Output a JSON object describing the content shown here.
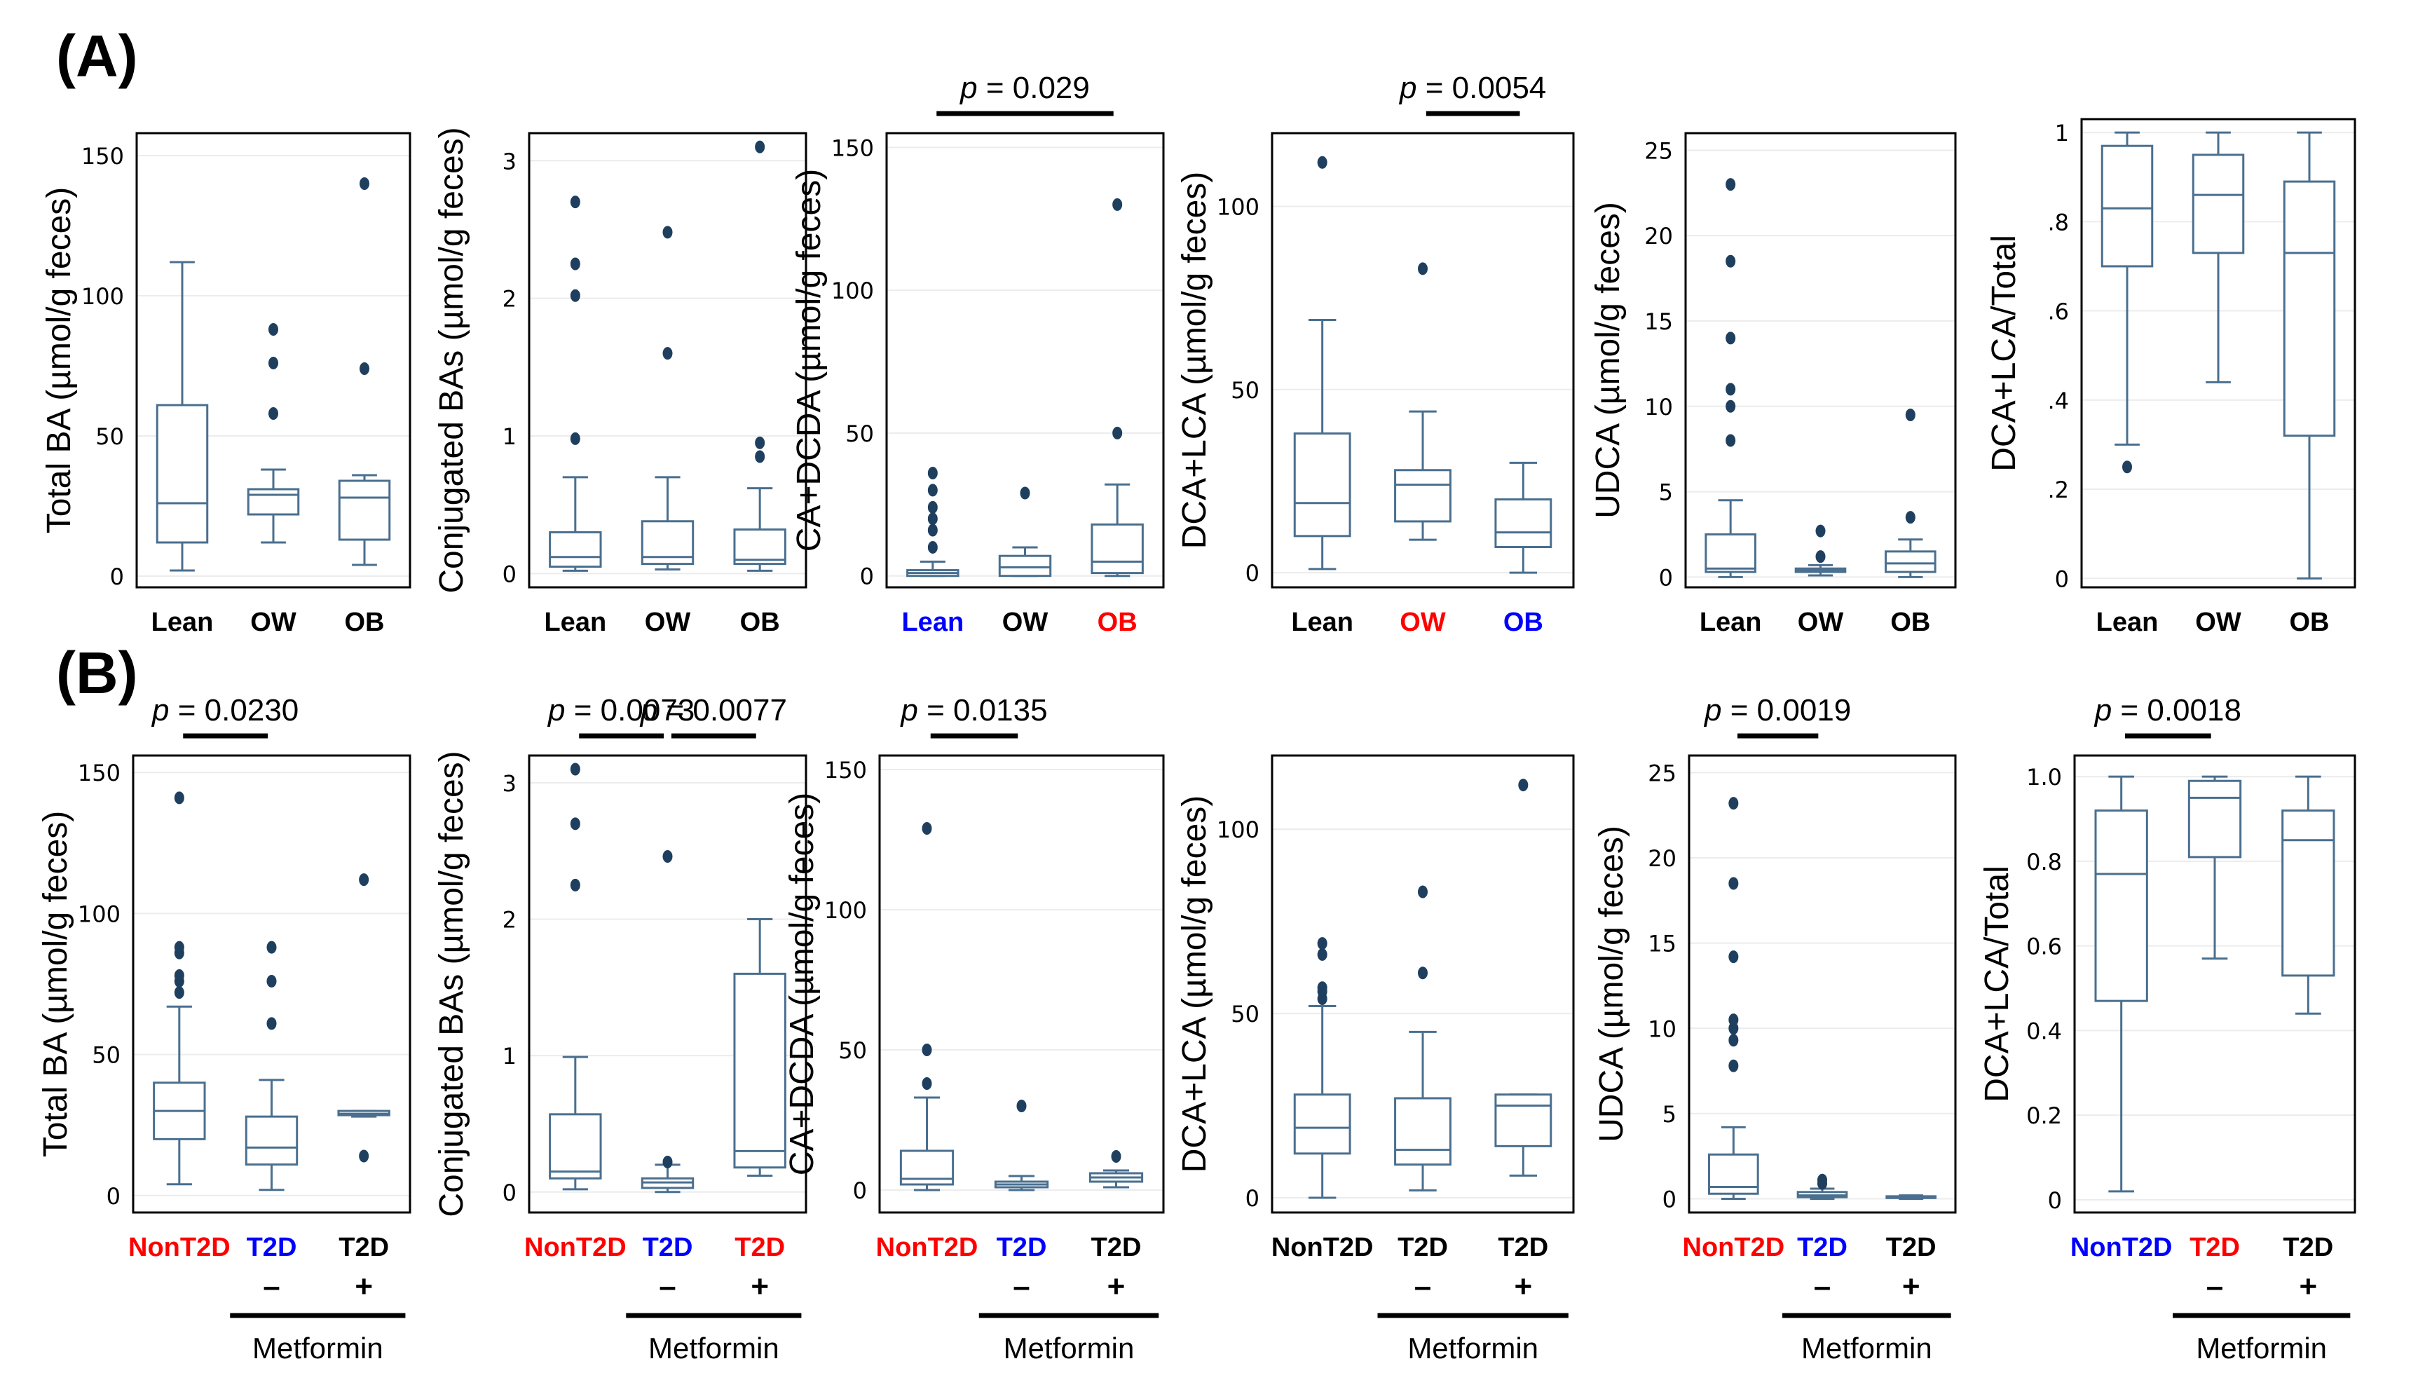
{
  "figure": {
    "panel_a_label": "(A)",
    "panel_b_label": "(B)",
    "colors": {
      "box": "#4a6f8f",
      "outlier": "#1f3f5f",
      "red": "#ff0000",
      "blue": "#0000ff",
      "black": "#000000"
    }
  },
  "chart_data": [
    {
      "id": "A1",
      "panel": "A",
      "type": "box",
      "ylabel": "Total BA (µmol/g feces)",
      "ylim": [
        -4,
        158
      ],
      "yticks": [
        0,
        50,
        100,
        150
      ],
      "ytick_labels": [
        "0",
        "50",
        "100",
        "150"
      ],
      "categories": [
        {
          "label": "Lean",
          "color": "#000000"
        },
        {
          "label": "OW",
          "color": "#000000"
        },
        {
          "label": "OB",
          "color": "#000000"
        }
      ],
      "boxes": [
        {
          "min": 2,
          "q1": 12,
          "median": 26,
          "q3": 61,
          "max": 112,
          "outliers": []
        },
        {
          "min": 12,
          "q1": 22,
          "median": 29,
          "q3": 31,
          "max": 38,
          "outliers": [
            58,
            76,
            88
          ]
        },
        {
          "min": 4,
          "q1": 13,
          "median": 28,
          "q3": 34,
          "max": 36,
          "outliers": [
            74,
            140
          ]
        }
      ],
      "brackets": [],
      "metformin": false
    },
    {
      "id": "A2",
      "panel": "A",
      "type": "box",
      "ylabel": "Conjugated BAs (µmol/g feces)",
      "ylim": [
        -0.1,
        3.2
      ],
      "yticks": [
        0,
        1,
        2,
        3
      ],
      "ytick_labels": [
        "0",
        "1",
        "2",
        "3"
      ],
      "categories": [
        {
          "label": "Lean",
          "color": "#000000"
        },
        {
          "label": "OW",
          "color": "#000000"
        },
        {
          "label": "OB",
          "color": "#000000"
        }
      ],
      "boxes": [
        {
          "min": 0.02,
          "q1": 0.05,
          "median": 0.12,
          "q3": 0.3,
          "max": 0.7,
          "outliers": [
            0.98,
            2.02,
            2.25,
            2.7
          ]
        },
        {
          "min": 0.03,
          "q1": 0.07,
          "median": 0.12,
          "q3": 0.38,
          "max": 0.7,
          "outliers": [
            1.6,
            2.48
          ]
        },
        {
          "min": 0.02,
          "q1": 0.07,
          "median": 0.1,
          "q3": 0.32,
          "max": 0.62,
          "outliers": [
            0.85,
            0.95,
            3.1
          ]
        }
      ],
      "brackets": [],
      "metformin": false
    },
    {
      "id": "A3",
      "panel": "A",
      "type": "box",
      "ylabel": "CA+DCDA (µmol/g feces)",
      "ylim": [
        -4,
        155
      ],
      "yticks": [
        0,
        50,
        100,
        150
      ],
      "ytick_labels": [
        "0",
        "50",
        "100",
        "150"
      ],
      "categories": [
        {
          "label": "Lean",
          "color": "#0000ff"
        },
        {
          "label": "OW",
          "color": "#000000"
        },
        {
          "label": "OB",
          "color": "#ff0000"
        }
      ],
      "boxes": [
        {
          "min": 0,
          "q1": 0,
          "median": 1,
          "q3": 2,
          "max": 5,
          "outliers": [
            10,
            16,
            20,
            24,
            30,
            36
          ]
        },
        {
          "min": 0,
          "q1": 0,
          "median": 3,
          "q3": 7,
          "max": 10,
          "outliers": [
            29
          ]
        },
        {
          "min": 0,
          "q1": 1,
          "median": 5,
          "q3": 18,
          "max": 32,
          "outliers": [
            50,
            130
          ]
        }
      ],
      "brackets": [
        {
          "from": 0,
          "to": 2,
          "label": "p = 0.029"
        }
      ],
      "metformin": false
    },
    {
      "id": "A4",
      "panel": "A",
      "type": "box",
      "ylabel": "DCA+LCA (µmol/g feces)",
      "ylim": [
        -4,
        120
      ],
      "yticks": [
        0,
        50,
        100
      ],
      "ytick_labels": [
        "0",
        "50",
        "100"
      ],
      "categories": [
        {
          "label": "Lean",
          "color": "#000000"
        },
        {
          "label": "OW",
          "color": "#ff0000"
        },
        {
          "label": "OB",
          "color": "#0000ff"
        }
      ],
      "boxes": [
        {
          "min": 1,
          "q1": 10,
          "median": 19,
          "q3": 38,
          "max": 69,
          "outliers": [
            112
          ]
        },
        {
          "min": 9,
          "q1": 14,
          "median": 24,
          "q3": 28,
          "max": 44,
          "outliers": [
            83
          ]
        },
        {
          "min": 0,
          "q1": 7,
          "median": 11,
          "q3": 20,
          "max": 30,
          "outliers": []
        }
      ],
      "brackets": [
        {
          "from": 1,
          "to": 2,
          "label": "p = 0.0054"
        }
      ],
      "metformin": false
    },
    {
      "id": "A5",
      "panel": "A",
      "type": "box",
      "ylabel": "UDCA (µmol/g feces)",
      "ylim": [
        -0.6,
        26
      ],
      "yticks": [
        0,
        5,
        10,
        15,
        20,
        25
      ],
      "ytick_labels": [
        "0",
        "5",
        "10",
        "15",
        "20",
        "25"
      ],
      "categories": [
        {
          "label": "Lean",
          "color": "#000000"
        },
        {
          "label": "OW",
          "color": "#000000"
        },
        {
          "label": "OB",
          "color": "#000000"
        }
      ],
      "boxes": [
        {
          "min": 0,
          "q1": 0.3,
          "median": 0.5,
          "q3": 2.5,
          "max": 4.5,
          "outliers": [
            8,
            10,
            11,
            14,
            18.5,
            23
          ]
        },
        {
          "min": 0.1,
          "q1": 0.3,
          "median": 0.4,
          "q3": 0.5,
          "max": 0.7,
          "outliers": [
            1.2,
            2.7
          ]
        },
        {
          "min": 0,
          "q1": 0.3,
          "median": 0.8,
          "q3": 1.5,
          "max": 2.2,
          "outliers": [
            3.5,
            9.5
          ]
        }
      ],
      "brackets": [],
      "metformin": false
    },
    {
      "id": "A6",
      "panel": "A",
      "type": "box",
      "ylabel": "DCA+LCA/Total",
      "ylim": [
        -0.02,
        1.03
      ],
      "yticks": [
        0,
        0.2,
        0.4,
        0.6,
        0.8,
        1.0
      ],
      "ytick_labels": [
        "0",
        ".2",
        ".4",
        ".6",
        ".8",
        "1"
      ],
      "categories": [
        {
          "label": "Lean",
          "color": "#000000"
        },
        {
          "label": "OW",
          "color": "#000000"
        },
        {
          "label": "OB",
          "color": "#000000"
        }
      ],
      "boxes": [
        {
          "min": 0.3,
          "q1": 0.7,
          "median": 0.83,
          "q3": 0.97,
          "max": 1.0,
          "outliers": [
            0.25
          ]
        },
        {
          "min": 0.44,
          "q1": 0.73,
          "median": 0.86,
          "q3": 0.95,
          "max": 1.0,
          "outliers": []
        },
        {
          "min": 0,
          "q1": 0.32,
          "median": 0.73,
          "q3": 0.89,
          "max": 1.0,
          "outliers": []
        }
      ],
      "brackets": [],
      "metformin": false
    },
    {
      "id": "B1",
      "panel": "B",
      "type": "box",
      "ylabel": "Total BA (µmol/g feces)",
      "ylim": [
        -6,
        156
      ],
      "yticks": [
        0,
        50,
        100,
        150
      ],
      "ytick_labels": [
        "0",
        "50",
        "100",
        "150"
      ],
      "categories": [
        {
          "label": "NonT2D",
          "color": "#ff0000"
        },
        {
          "label": "T2D",
          "color": "#0000ff",
          "sign": "–"
        },
        {
          "label": "T2D",
          "color": "#000000",
          "sign": "+"
        }
      ],
      "boxes": [
        {
          "min": 4,
          "q1": 20,
          "median": 30,
          "q3": 40,
          "max": 67,
          "outliers": [
            72,
            76,
            78,
            86,
            88,
            141
          ]
        },
        {
          "min": 2,
          "q1": 11,
          "median": 17,
          "q3": 28,
          "max": 41,
          "outliers": [
            61,
            76,
            88
          ]
        },
        {
          "min": 28,
          "q1": 28.5,
          "median": 29,
          "q3": 30,
          "max": 30,
          "outliers": [
            14,
            112
          ]
        }
      ],
      "brackets": [
        {
          "from": 0,
          "to": 1,
          "label": "p = 0.0230"
        }
      ],
      "metformin": true,
      "metformin_label": "Metformin"
    },
    {
      "id": "B2",
      "panel": "B",
      "type": "box",
      "ylabel": "Conjugated BAs (µmol/g feces)",
      "ylim": [
        -0.15,
        3.2
      ],
      "yticks": [
        0,
        1,
        2,
        3
      ],
      "ytick_labels": [
        "0",
        "1",
        "2",
        "3"
      ],
      "categories": [
        {
          "label": "NonT2D",
          "color": "#ff0000"
        },
        {
          "label": "T2D",
          "color": "#0000ff",
          "sign": "–"
        },
        {
          "label": "T2D",
          "color": "#ff0000",
          "sign": "+"
        }
      ],
      "boxes": [
        {
          "min": 0.02,
          "q1": 0.1,
          "median": 0.15,
          "q3": 0.57,
          "max": 0.99,
          "outliers": [
            2.25,
            2.7,
            3.1
          ]
        },
        {
          "min": 0,
          "q1": 0.03,
          "median": 0.07,
          "q3": 0.1,
          "max": 0.2,
          "outliers": [
            0.22,
            2.46
          ]
        },
        {
          "min": 0.12,
          "q1": 0.18,
          "median": 0.3,
          "q3": 1.6,
          "max": 2.0,
          "outliers": []
        }
      ],
      "brackets": [
        {
          "from": 0,
          "to": 1,
          "label": "p = 0.0073"
        },
        {
          "from": 1,
          "to": 2,
          "label": "p = 0.0077"
        }
      ],
      "metformin": true,
      "metformin_label": "Metformin"
    },
    {
      "id": "B3",
      "panel": "B",
      "type": "box",
      "ylabel": "CA+DCDA (µmol/g feces)",
      "ylim": [
        -8,
        155
      ],
      "yticks": [
        0,
        50,
        100,
        150
      ],
      "ytick_labels": [
        "0",
        "50",
        "100",
        "150"
      ],
      "categories": [
        {
          "label": "NonT2D",
          "color": "#ff0000"
        },
        {
          "label": "T2D",
          "color": "#0000ff",
          "sign": "–"
        },
        {
          "label": "T2D",
          "color": "#000000",
          "sign": "+"
        }
      ],
      "boxes": [
        {
          "min": 0,
          "q1": 2,
          "median": 4,
          "q3": 14,
          "max": 33,
          "outliers": [
            38,
            50,
            129
          ]
        },
        {
          "min": 0,
          "q1": 1,
          "median": 2,
          "q3": 3,
          "max": 5,
          "outliers": [
            30
          ]
        },
        {
          "min": 1,
          "q1": 3,
          "median": 4.5,
          "q3": 6,
          "max": 7,
          "outliers": [
            12
          ]
        }
      ],
      "brackets": [
        {
          "from": 0,
          "to": 1,
          "label": "p = 0.0135"
        }
      ],
      "metformin": true,
      "metformin_label": "Metformin"
    },
    {
      "id": "B4",
      "panel": "B",
      "type": "box",
      "ylabel": "DCA+LCA (µmol/g feces)",
      "ylim": [
        -4,
        120
      ],
      "yticks": [
        0,
        50,
        100
      ],
      "ytick_labels": [
        "0",
        "50",
        "100"
      ],
      "categories": [
        {
          "label": "NonT2D",
          "color": "#000000"
        },
        {
          "label": "T2D",
          "color": "#000000",
          "sign": "–"
        },
        {
          "label": "T2D",
          "color": "#000000",
          "sign": "+"
        }
      ],
      "boxes": [
        {
          "min": 0,
          "q1": 12,
          "median": 19,
          "q3": 28,
          "max": 52,
          "outliers": [
            54,
            56,
            57,
            66,
            69
          ]
        },
        {
          "min": 2,
          "q1": 9,
          "median": 13,
          "q3": 27,
          "max": 45,
          "outliers": [
            61,
            83
          ]
        },
        {
          "min": 6,
          "q1": 14,
          "median": 25,
          "q3": 28,
          "max": 28,
          "outliers": [
            112
          ]
        }
      ],
      "brackets": [],
      "metformin": true,
      "metformin_label": "Metformin"
    },
    {
      "id": "B5",
      "panel": "B",
      "type": "box",
      "ylabel": "UDCA (µmol/g feces)",
      "ylim": [
        -0.8,
        26
      ],
      "yticks": [
        0,
        5,
        10,
        15,
        20,
        25
      ],
      "ytick_labels": [
        "0",
        "5",
        "10",
        "15",
        "20",
        "25"
      ],
      "categories": [
        {
          "label": "NonT2D",
          "color": "#ff0000"
        },
        {
          "label": "T2D",
          "color": "#0000ff",
          "sign": "–"
        },
        {
          "label": "T2D",
          "color": "#000000",
          "sign": "+"
        }
      ],
      "boxes": [
        {
          "min": 0,
          "q1": 0.3,
          "median": 0.7,
          "q3": 2.6,
          "max": 4.2,
          "outliers": [
            7.8,
            9.3,
            10,
            10.5,
            14.2,
            18.5,
            23.2
          ]
        },
        {
          "min": 0,
          "q1": 0.1,
          "median": 0.2,
          "q3": 0.4,
          "max": 0.6,
          "outliers": [
            0.9,
            1.1
          ]
        },
        {
          "min": 0,
          "q1": 0.05,
          "median": 0.1,
          "q3": 0.15,
          "max": 0.2,
          "outliers": []
        }
      ],
      "brackets": [
        {
          "from": 0,
          "to": 1,
          "label": "p = 0.0019"
        }
      ],
      "metformin": true,
      "metformin_label": "Metformin"
    },
    {
      "id": "B6",
      "panel": "B",
      "type": "box",
      "ylabel": "DCA+LCA/Total",
      "ylim": [
        -0.03,
        1.05
      ],
      "yticks": [
        0,
        0.2,
        0.4,
        0.6,
        0.8,
        1.0
      ],
      "ytick_labels": [
        "0",
        "0.2",
        "0.4",
        "0.6",
        "0.8",
        "1.0"
      ],
      "categories": [
        {
          "label": "NonT2D",
          "color": "#0000ff"
        },
        {
          "label": "T2D",
          "color": "#ff0000",
          "sign": "–"
        },
        {
          "label": "T2D",
          "color": "#000000",
          "sign": "+"
        }
      ],
      "boxes": [
        {
          "min": 0.02,
          "q1": 0.47,
          "median": 0.77,
          "q3": 0.92,
          "max": 1.0,
          "outliers": []
        },
        {
          "min": 0.57,
          "q1": 0.81,
          "median": 0.95,
          "q3": 0.99,
          "max": 1.0,
          "outliers": []
        },
        {
          "min": 0.44,
          "q1": 0.53,
          "median": 0.85,
          "q3": 0.92,
          "max": 1.0,
          "outliers": []
        }
      ],
      "brackets": [
        {
          "from": 0,
          "to": 1,
          "label": "p = 0.0018"
        }
      ],
      "metformin": true,
      "metformin_label": "Metformin"
    }
  ]
}
